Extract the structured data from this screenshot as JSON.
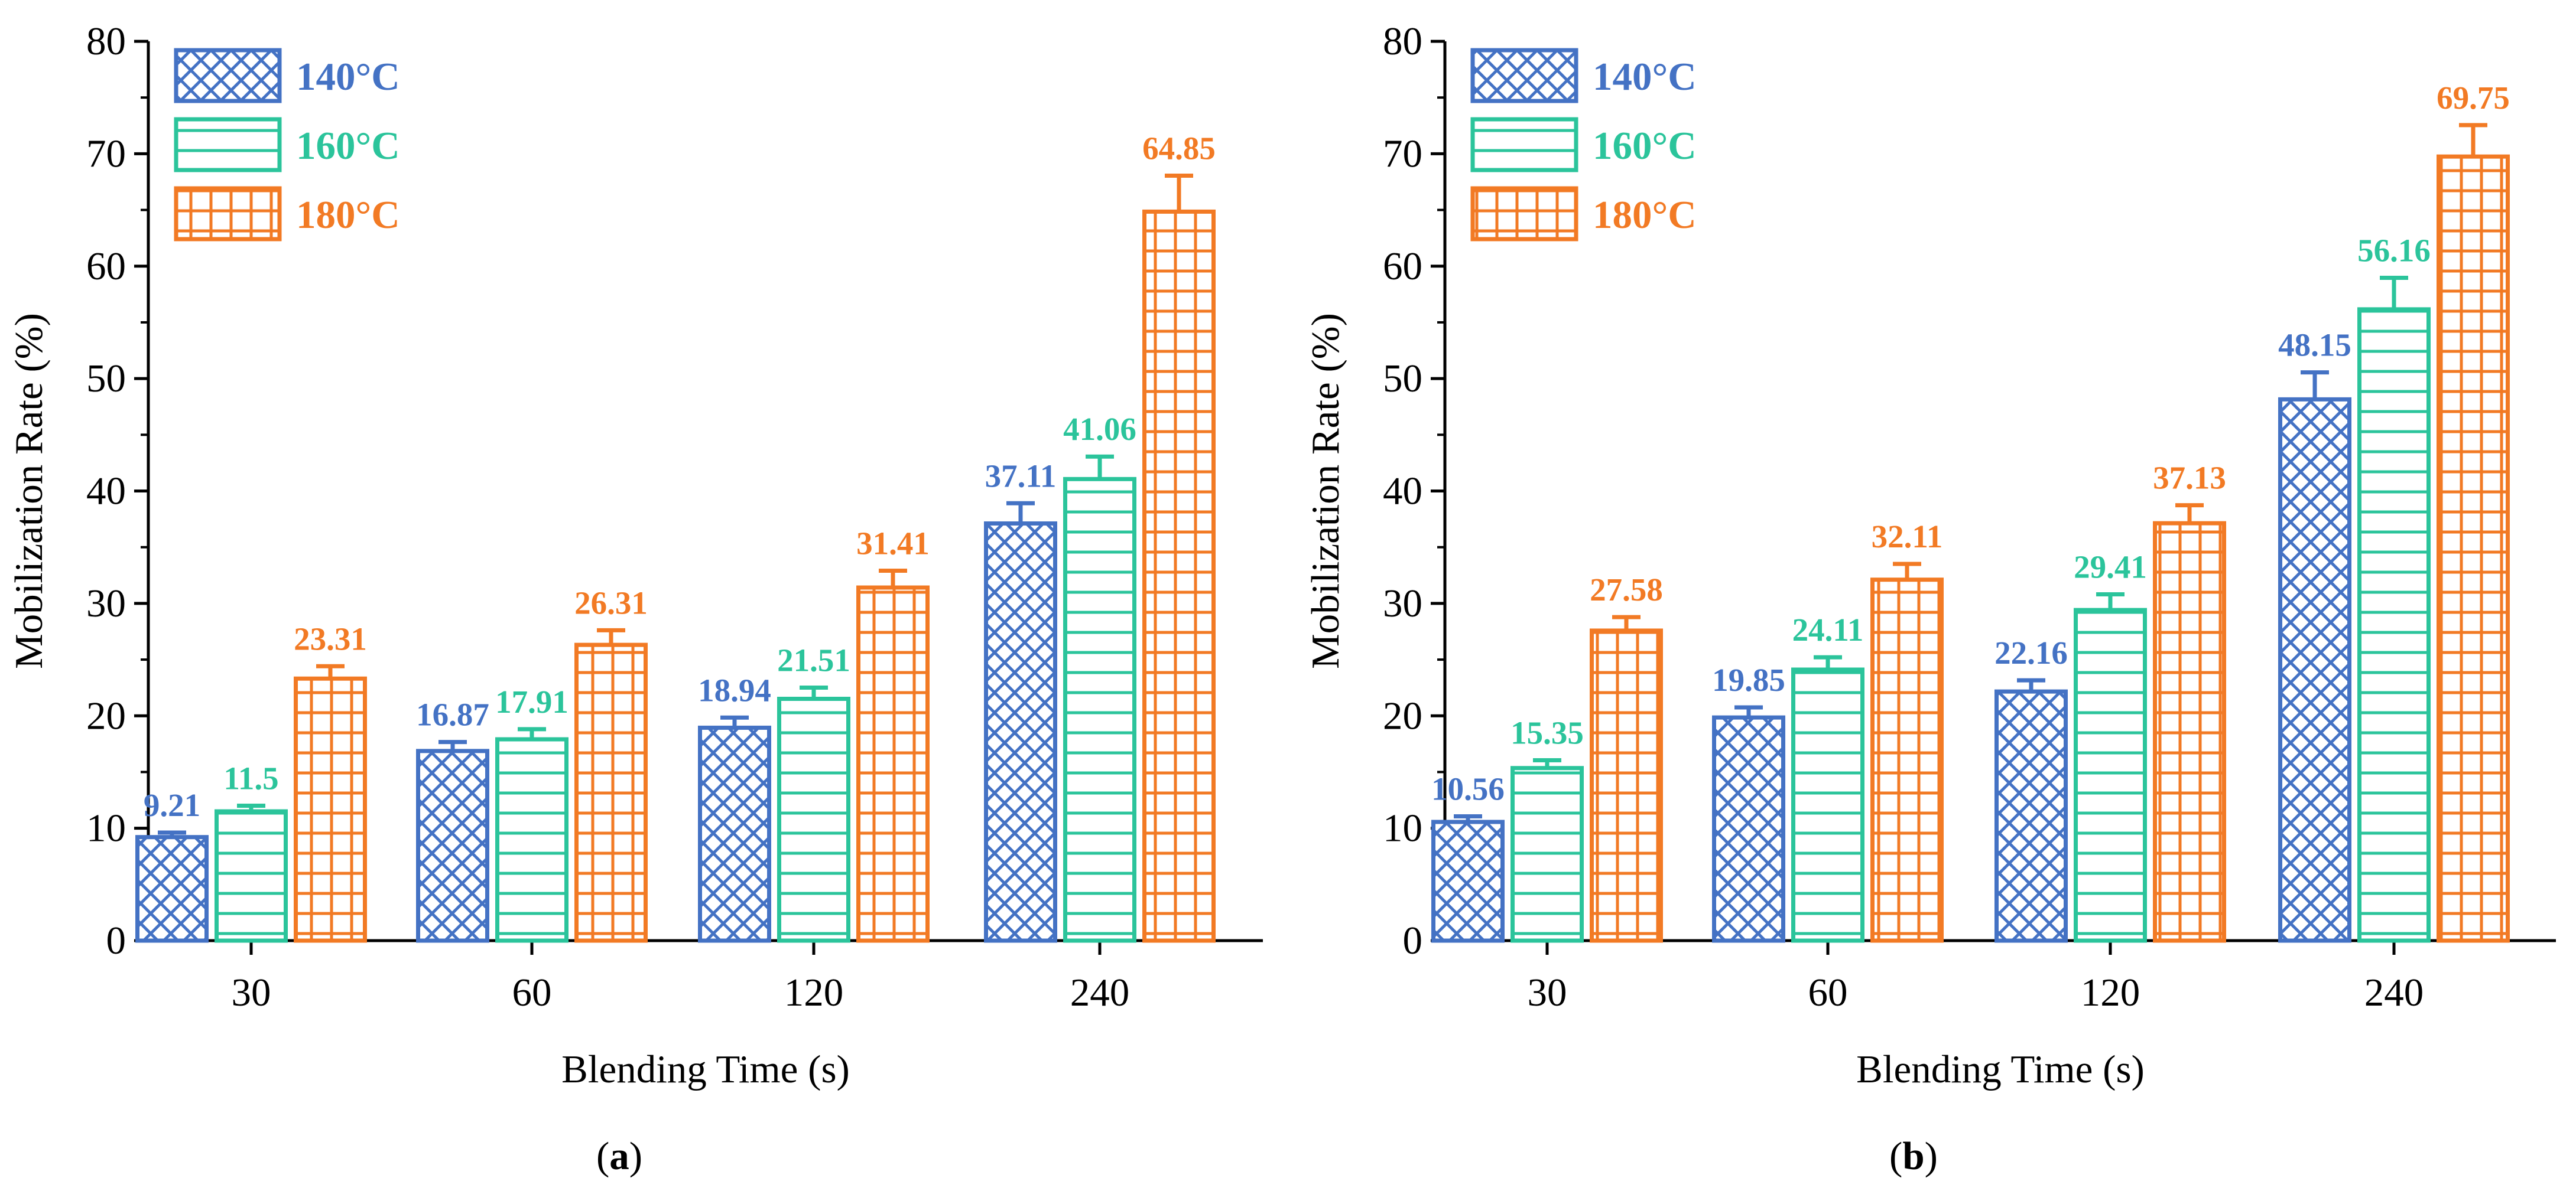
{
  "colors": {
    "c140": "#4472C4",
    "c160": "#2BC49B",
    "c180": "#F27A24",
    "axis": "#000000"
  },
  "panels": {
    "a": {
      "label_open": "(",
      "label_letter": "a",
      "label_close": ")"
    },
    "b": {
      "label_open": "(",
      "label_letter": "b",
      "label_close": ")"
    }
  },
  "chart_data": [
    {
      "type": "bar",
      "title": "",
      "xlabel": "Blending Time (s)",
      "ylabel": "Mobilization Rate (%)",
      "ylim": [
        0,
        80
      ],
      "yticks": [
        0,
        10,
        20,
        30,
        40,
        50,
        60,
        70,
        80
      ],
      "categories": [
        "30",
        "60",
        "120",
        "240"
      ],
      "legend_position": "top-left",
      "series": [
        {
          "name": "140°C",
          "color_key": "c140",
          "pattern": "crosshatch",
          "values": [
            9.21,
            16.87,
            18.94,
            37.11
          ],
          "labels": [
            "9.21",
            "16.87",
            "18.94",
            "37.11"
          ],
          "errors": [
            0.4,
            0.8,
            0.9,
            1.8
          ]
        },
        {
          "name": "160°C",
          "color_key": "c160",
          "pattern": "horizontal",
          "values": [
            11.5,
            17.91,
            21.51,
            41.06
          ],
          "labels": [
            "11.5",
            "17.91",
            "21.51",
            "41.06"
          ],
          "errors": [
            0.5,
            0.9,
            1.0,
            2.0
          ]
        },
        {
          "name": "180°C",
          "color_key": "c180",
          "pattern": "grid",
          "values": [
            23.31,
            26.31,
            31.41,
            64.85
          ],
          "labels": [
            "23.31",
            "26.31",
            "31.41",
            "64.85"
          ],
          "errors": [
            1.1,
            1.3,
            1.5,
            3.2
          ]
        }
      ]
    },
    {
      "type": "bar",
      "title": "",
      "xlabel": "Blending Time (s)",
      "ylabel": "Mobilization Rate (%)",
      "ylim": [
        0,
        80
      ],
      "yticks": [
        0,
        10,
        20,
        30,
        40,
        50,
        60,
        70,
        80
      ],
      "categories": [
        "30",
        "60",
        "120",
        "240"
      ],
      "legend_position": "top-left",
      "series": [
        {
          "name": "140°C",
          "color_key": "c140",
          "pattern": "crosshatch",
          "values": [
            10.56,
            19.85,
            22.16,
            48.15
          ],
          "labels": [
            "10.56",
            "19.85",
            "22.16",
            "48.15"
          ],
          "errors": [
            0.5,
            0.9,
            1.0,
            2.4
          ]
        },
        {
          "name": "160°C",
          "color_key": "c160",
          "pattern": "horizontal",
          "values": [
            15.35,
            24.11,
            29.41,
            56.16
          ],
          "labels": [
            "15.35",
            "24.11",
            "29.41",
            "56.16"
          ],
          "errors": [
            0.7,
            1.1,
            1.4,
            2.8
          ]
        },
        {
          "name": "180°C",
          "color_key": "c180",
          "pattern": "grid",
          "values": [
            27.58,
            32.11,
            37.13,
            69.75
          ],
          "labels": [
            "27.58",
            "32.11",
            "37.13",
            "69.75"
          ],
          "errors": [
            1.2,
            1.4,
            1.6,
            2.8
          ]
        }
      ]
    }
  ]
}
